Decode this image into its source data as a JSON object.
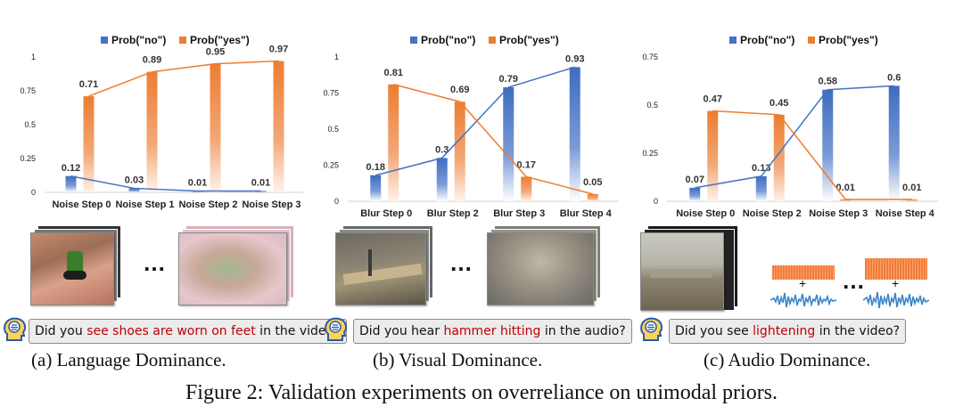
{
  "colors": {
    "no": "#4472c4",
    "yes": "#ed7d31",
    "highlight": "#c00000"
  },
  "panels": [
    {
      "caption": "(a) Language Dominance.",
      "question": {
        "pre": "Did you ",
        "highlight": "see shoes are worn on feet",
        "post": " in the video?"
      },
      "ellipsis": "…",
      "chart_data": {
        "type": "bar",
        "categories": [
          "Noise Step 0",
          "Noise Step 1",
          "Noise Step 2",
          "Noise Step 3"
        ],
        "series": [
          {
            "name": "Prob(\"no\")",
            "values": [
              0.12,
              0.03,
              0.01,
              0.01
            ]
          },
          {
            "name": "Prob(\"yes\")",
            "values": [
              0.71,
              0.89,
              0.95,
              0.97
            ]
          }
        ],
        "ylim": [
          0,
          1
        ],
        "yticks": [
          "0",
          "0.25",
          "0.5",
          "0.75",
          "1"
        ],
        "ytick_values": [
          0,
          0.25,
          0.5,
          0.75,
          1
        ],
        "line_overlay": true,
        "legend": "top"
      }
    },
    {
      "caption": "(b) Visual Dominance.",
      "question": {
        "pre": "Did you hear ",
        "highlight": "hammer hitting",
        "post": " in the audio?"
      },
      "ellipsis": "…",
      "chart_data": {
        "type": "bar",
        "categories": [
          "Blur Step 0",
          "Blur Step 2",
          "Blur Step 3",
          "Blur Step 4"
        ],
        "series": [
          {
            "name": "Prob(\"no\")",
            "values": [
              0.18,
              0.3,
              0.79,
              0.93
            ]
          },
          {
            "name": "Prob(\"yes\")",
            "values": [
              0.81,
              0.69,
              0.17,
              0.05
            ]
          }
        ],
        "ylim": [
          0,
          1
        ],
        "yticks": [
          "0",
          "0.25",
          "0.5",
          "0.75",
          "1"
        ],
        "ytick_values": [
          0,
          0.25,
          0.5,
          0.75,
          1
        ],
        "line_overlay": true,
        "legend": "top"
      }
    },
    {
      "caption": "(c) Audio Dominance.",
      "question": {
        "pre": "Did you see ",
        "highlight": "lightening",
        "post": " in the video?"
      },
      "ellipsis": "…",
      "plus": "+",
      "chart_data": {
        "type": "bar",
        "categories": [
          "Noise Step 0",
          "Noise Step 2",
          "Noise Step 3",
          "Noise Step 4"
        ],
        "series": [
          {
            "name": "Prob(\"no\")",
            "values": [
              0.07,
              0.13,
              0.58,
              0.6
            ]
          },
          {
            "name": "Prob(\"yes\")",
            "values": [
              0.47,
              0.45,
              0.01,
              0.01
            ]
          }
        ],
        "ylim": [
          0,
          0.75
        ],
        "yticks": [
          "0",
          "0.25",
          "0.5",
          "0.75"
        ],
        "ytick_values": [
          0,
          0.25,
          0.5,
          0.75
        ],
        "line_overlay": true,
        "legend": "top"
      }
    }
  ],
  "figure_caption": "Figure 2: Validation experiments on overreliance on unimodal priors."
}
